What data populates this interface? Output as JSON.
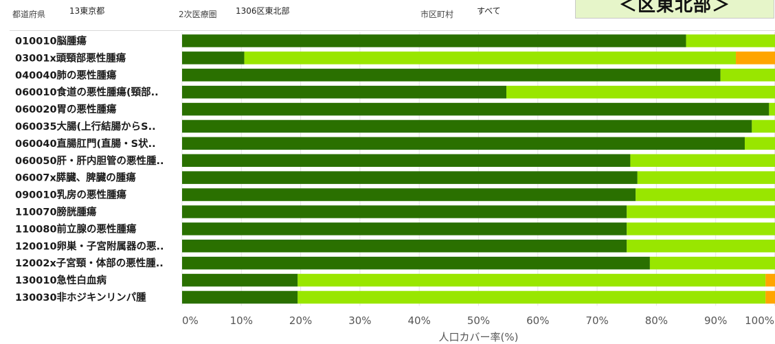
{
  "filters": {
    "prefecture_label": "都道府県",
    "prefecture_value": "13東京都",
    "area_label": "2次医療圏",
    "area_value": "1306区東北部",
    "city_label": "市区町村",
    "city_value": "すべて"
  },
  "region_title": "＜区東北部＞",
  "chart_data": {
    "type": "bar",
    "orientation": "horizontal",
    "stacked": true,
    "xlabel": "人口カバー率(%)",
    "xlim": [
      0,
      100
    ],
    "ticks": [
      "0%",
      "10%",
      "20%",
      "30%",
      "40%",
      "50%",
      "60%",
      "70%",
      "80%",
      "90%",
      "100%"
    ],
    "grid": true,
    "categories": [
      "010010脳腫瘍",
      "03001x頭頸部悪性腫瘍",
      "040040肺の悪性腫瘍",
      "060010食道の悪性腫瘍(頸部..",
      "060020胃の悪性腫瘍",
      "060035大腸(上行結腸からS..",
      "060040直腸肛門(直腸・S状..",
      "060050肝・肝内胆管の悪性腫..",
      "06007x膵臓、脾臓の腫瘍",
      "090010乳房の悪性腫瘍",
      "110070膀胱腫瘍",
      "110080前立腺の悪性腫瘍",
      "120010卵巣・子宮附属器の悪..",
      "12002x子宮頸・体部の悪性腫..",
      "130010急性白血病",
      "130030非ホジキンリンパ腫"
    ],
    "series": [
      {
        "color": "#2a7000",
        "values": [
          85.0,
          10.5,
          90.8,
          54.7,
          99.0,
          96.1,
          94.9,
          75.6,
          76.8,
          76.5,
          75.0,
          75.0,
          75.0,
          78.9,
          19.5,
          19.5
        ]
      },
      {
        "color": "#99e600",
        "values": [
          15.0,
          82.9,
          9.2,
          45.3,
          1.0,
          3.9,
          5.1,
          24.4,
          23.2,
          23.5,
          25.0,
          25.0,
          25.0,
          21.1,
          78.9,
          78.9
        ]
      },
      {
        "color": "#ffa500",
        "values": [
          0,
          6.6,
          0,
          0,
          0,
          0,
          0,
          0,
          0,
          0,
          0,
          0,
          0,
          0,
          1.6,
          1.6
        ]
      }
    ]
  }
}
